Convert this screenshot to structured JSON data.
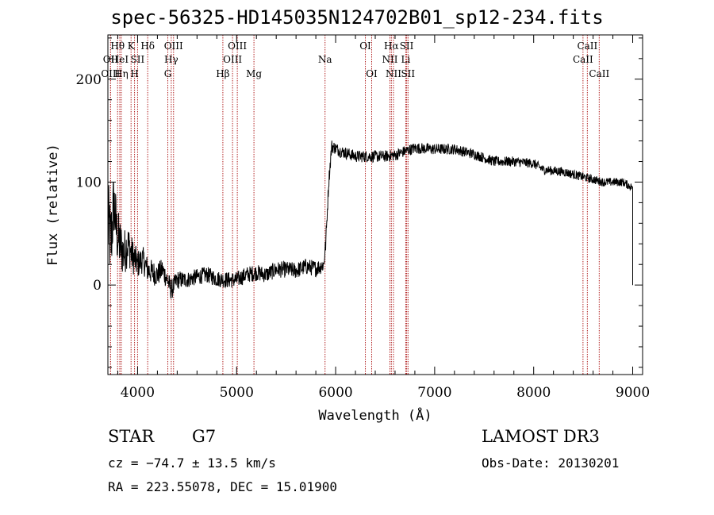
{
  "title": "spec-56325-HD145035N124702B01_sp12-234.fits",
  "info": {
    "obj_class": "STAR",
    "subclass": "G7",
    "survey": "LAMOST DR3",
    "cz": "cz = −74.7 ± 13.5 km/s",
    "obs_date": "Obs-Date: 20130201",
    "radec": "RA = 223.55078, DEC =  15.01900"
  },
  "colors": {
    "spectrum": "#000000",
    "line_marker": "#b22222",
    "axis": "#000000"
  },
  "chart_data": {
    "type": "line",
    "title": "spec-56325-HD145035N124702B01_sp12-234.fits",
    "xlabel": "Wavelength (Å)",
    "ylabel": "Flux (relative)",
    "xlim": [
      3700,
      9100
    ],
    "ylim": [
      -87,
      243
    ],
    "xticks": [
      4000,
      5000,
      6000,
      7000,
      8000,
      9000
    ],
    "yticks": [
      0,
      100,
      200
    ],
    "spectrum_anchors": [
      [
        3700,
        60
      ],
      [
        3730,
        40
      ],
      [
        3760,
        80
      ],
      [
        3790,
        50
      ],
      [
        3820,
        40
      ],
      [
        3860,
        30
      ],
      [
        3900,
        40
      ],
      [
        3950,
        28
      ],
      [
        4000,
        20
      ],
      [
        4050,
        25
      ],
      [
        4100,
        15
      ],
      [
        4150,
        12
      ],
      [
        4200,
        10
      ],
      [
        4250,
        15
      ],
      [
        4300,
        5
      ],
      [
        4340,
        -5
      ],
      [
        4400,
        5
      ],
      [
        4500,
        5
      ],
      [
        4600,
        8
      ],
      [
        4700,
        10
      ],
      [
        4800,
        6
      ],
      [
        4900,
        5
      ],
      [
        5000,
        5
      ],
      [
        5100,
        10
      ],
      [
        5200,
        12
      ],
      [
        5300,
        10
      ],
      [
        5400,
        15
      ],
      [
        5500,
        15
      ],
      [
        5600,
        14
      ],
      [
        5700,
        18
      ],
      [
        5800,
        16
      ],
      [
        5880,
        20
      ],
      [
        5900,
        40
      ],
      [
        5930,
        100
      ],
      [
        5960,
        135
      ],
      [
        6050,
        130
      ],
      [
        6200,
        125
      ],
      [
        6350,
        125
      ],
      [
        6500,
        125
      ],
      [
        6600,
        126
      ],
      [
        6700,
        130
      ],
      [
        6800,
        133
      ],
      [
        7000,
        132
      ],
      [
        7200,
        132
      ],
      [
        7400,
        127
      ],
      [
        7600,
        120
      ],
      [
        7800,
        120
      ],
      [
        8000,
        118
      ],
      [
        8100,
        112
      ],
      [
        8300,
        110
      ],
      [
        8500,
        105
      ],
      [
        8700,
        100
      ],
      [
        8900,
        100
      ],
      [
        8990,
        95
      ],
      [
        9000,
        0
      ]
    ],
    "noise_profile": [
      [
        3700,
        45
      ],
      [
        3800,
        28
      ],
      [
        4000,
        14
      ],
      [
        4500,
        8
      ],
      [
        5900,
        8
      ],
      [
        6000,
        6
      ],
      [
        9000,
        4
      ]
    ],
    "spectral_lines": [
      {
        "label": "OII",
        "wl": 3727,
        "row": 1
      },
      {
        "label": "Hθ",
        "wl": 3798,
        "row": 0
      },
      {
        "label": "OIII",
        "wl": 3727,
        "row": 2
      },
      {
        "label": "HeI",
        "wl": 3820,
        "row": 1
      },
      {
        "label": "Hη",
        "wl": 3835,
        "row": 2
      },
      {
        "label": "K",
        "wl": 3934,
        "row": 0
      },
      {
        "label": "SII",
        "wl": 4000,
        "row": 1
      },
      {
        "label": "H",
        "wl": 3969,
        "row": 2
      },
      {
        "label": "Hδ",
        "wl": 4102,
        "row": 0
      },
      {
        "label": "OIII",
        "wl": 4363,
        "row": 0
      },
      {
        "label": "Hγ",
        "wl": 4340,
        "row": 1
      },
      {
        "label": "G",
        "wl": 4305,
        "row": 2
      },
      {
        "label": "Hβ",
        "wl": 4861,
        "row": 2
      },
      {
        "label": "OIII",
        "wl": 5007,
        "row": 0
      },
      {
        "label": "OIII",
        "wl": 4959,
        "row": 1
      },
      {
        "label": "Mg",
        "wl": 5175,
        "row": 2
      },
      {
        "label": "Na",
        "wl": 5893,
        "row": 1
      },
      {
        "label": "OI",
        "wl": 6300,
        "row": 0
      },
      {
        "label": "OI",
        "wl": 6364,
        "row": 2
      },
      {
        "label": "Hα",
        "wl": 6563,
        "row": 0
      },
      {
        "label": "NII",
        "wl": 6548,
        "row": 1
      },
      {
        "label": "NII",
        "wl": 6584,
        "row": 2
      },
      {
        "label": "SII",
        "wl": 6717,
        "row": 0
      },
      {
        "label": "Li",
        "wl": 6708,
        "row": 1
      },
      {
        "label": "SII",
        "wl": 6731,
        "row": 2
      },
      {
        "label": "CaII",
        "wl": 8542,
        "row": 0
      },
      {
        "label": "CaII",
        "wl": 8498,
        "row": 1
      },
      {
        "label": "CaII",
        "wl": 8662,
        "row": 2
      }
    ]
  }
}
